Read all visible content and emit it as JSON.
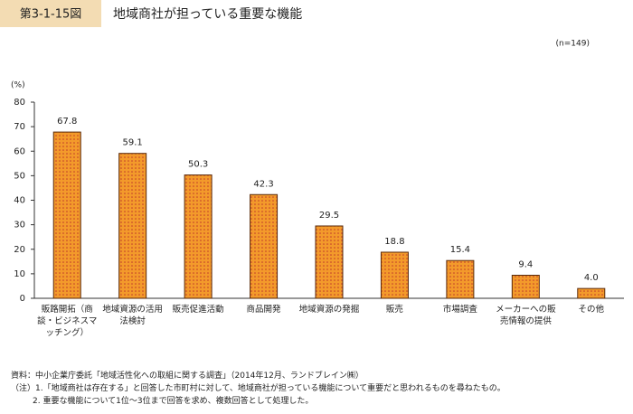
{
  "figure_label": "第3-1-15図",
  "chart_data": {
    "type": "bar",
    "title": "地域商社が担っている重要な機能",
    "subtitle": "(n=149)",
    "y_label": "(%)",
    "categories": [
      "販路開拓（商談・ビジネスマッチング）",
      "地域資源の活用法検討",
      "販売促進活動",
      "商品開発",
      "地域資源の発掘",
      "販売",
      "市場調査",
      "メーカーへの販売情報の提供",
      "その他"
    ],
    "values": [
      67.8,
      59.1,
      50.3,
      42.3,
      29.5,
      18.8,
      15.4,
      9.4,
      4.0
    ],
    "value_labels": [
      "67.8",
      "59.1",
      "50.3",
      "42.3",
      "29.5",
      "18.8",
      "15.4",
      "9.4",
      "4.0"
    ],
    "color": "#f39a2b",
    "ylim": [
      0,
      80
    ],
    "yticks": [
      0,
      10,
      20,
      30,
      40,
      50,
      60,
      70,
      80
    ],
    "grid": false
  },
  "notes": [
    "資料：中小企業庁委託「地域活性化への取組に関する調査」（2014年12月、ランドブレイン㈱）",
    "（注）1.「地域商社は存在する」と回答した市町村に対して、地域商社が担っている機能について重要だと思われるものを尋ねたもの。",
    "2. 重要な機能について1位～3位まで回答を求め、複数回答として処理した。"
  ]
}
